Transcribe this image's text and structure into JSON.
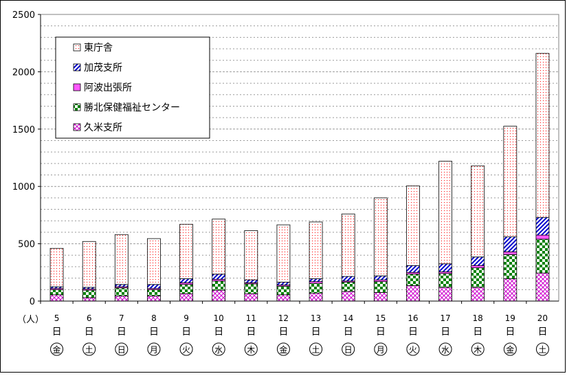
{
  "chart_data": {
    "type": "bar",
    "stacked": true,
    "title": "",
    "xlabel": "",
    "ylabel": "",
    "unit_label": "（人）",
    "ylim": [
      0,
      2500
    ],
    "yticks": [
      0,
      500,
      1000,
      1500,
      2000,
      2500
    ],
    "grid": true,
    "legend_position": "top-left",
    "categories": [
      {
        "day": "5",
        "unit": "日",
        "weekday": "金"
      },
      {
        "day": "6",
        "unit": "日",
        "weekday": "土"
      },
      {
        "day": "7",
        "unit": "日",
        "weekday": "日"
      },
      {
        "day": "8",
        "unit": "日",
        "weekday": "月"
      },
      {
        "day": "9",
        "unit": "日",
        "weekday": "火"
      },
      {
        "day": "10",
        "unit": "日",
        "weekday": "水"
      },
      {
        "day": "11",
        "unit": "日",
        "weekday": "木"
      },
      {
        "day": "12",
        "unit": "日",
        "weekday": "金"
      },
      {
        "day": "13",
        "unit": "日",
        "weekday": "土"
      },
      {
        "day": "14",
        "unit": "日",
        "weekday": "日"
      },
      {
        "day": "15",
        "unit": "日",
        "weekday": "月"
      },
      {
        "day": "16",
        "unit": "日",
        "weekday": "火"
      },
      {
        "day": "17",
        "unit": "日",
        "weekday": "水"
      },
      {
        "day": "18",
        "unit": "日",
        "weekday": "木"
      },
      {
        "day": "19",
        "unit": "日",
        "weekday": "金"
      },
      {
        "day": "20",
        "unit": "日",
        "weekday": "土"
      }
    ],
    "series": [
      {
        "name": "久米支所",
        "pattern": "diag-cross",
        "color": "#cc00cc",
        "values": [
          55,
          30,
          45,
          45,
          65,
          95,
          65,
          55,
          70,
          85,
          75,
          135,
          120,
          120,
          195,
          245
        ]
      },
      {
        "name": "勝北保健福祉センター",
        "pattern": "checker",
        "color": "#008000",
        "values": [
          45,
          65,
          70,
          55,
          80,
          80,
          85,
          75,
          85,
          80,
          95,
          100,
          120,
          170,
          210,
          295
        ]
      },
      {
        "name": "阿波出張所",
        "pattern": "dots-dense",
        "color": "#ff00ff",
        "values": [
          10,
          10,
          10,
          10,
          15,
          15,
          10,
          10,
          15,
          10,
          15,
          15,
          15,
          20,
          25,
          35
        ]
      },
      {
        "name": "加茂支所",
        "pattern": "diag-stripe",
        "color": "#0000cc",
        "values": [
          15,
          15,
          20,
          35,
          35,
          45,
          25,
          25,
          25,
          40,
          35,
          60,
          70,
          75,
          130,
          155
        ]
      },
      {
        "name": "東庁舎",
        "pattern": "dots-sparse",
        "color": "#ff0000",
        "values": [
          335,
          400,
          435,
          400,
          475,
          480,
          430,
          500,
          495,
          545,
          680,
          695,
          895,
          795,
          965,
          1430
        ]
      }
    ],
    "legend_order": [
      "東庁舎",
      "加茂支所",
      "阿波出張所",
      "勝北保健福祉センター",
      "久米支所"
    ]
  }
}
